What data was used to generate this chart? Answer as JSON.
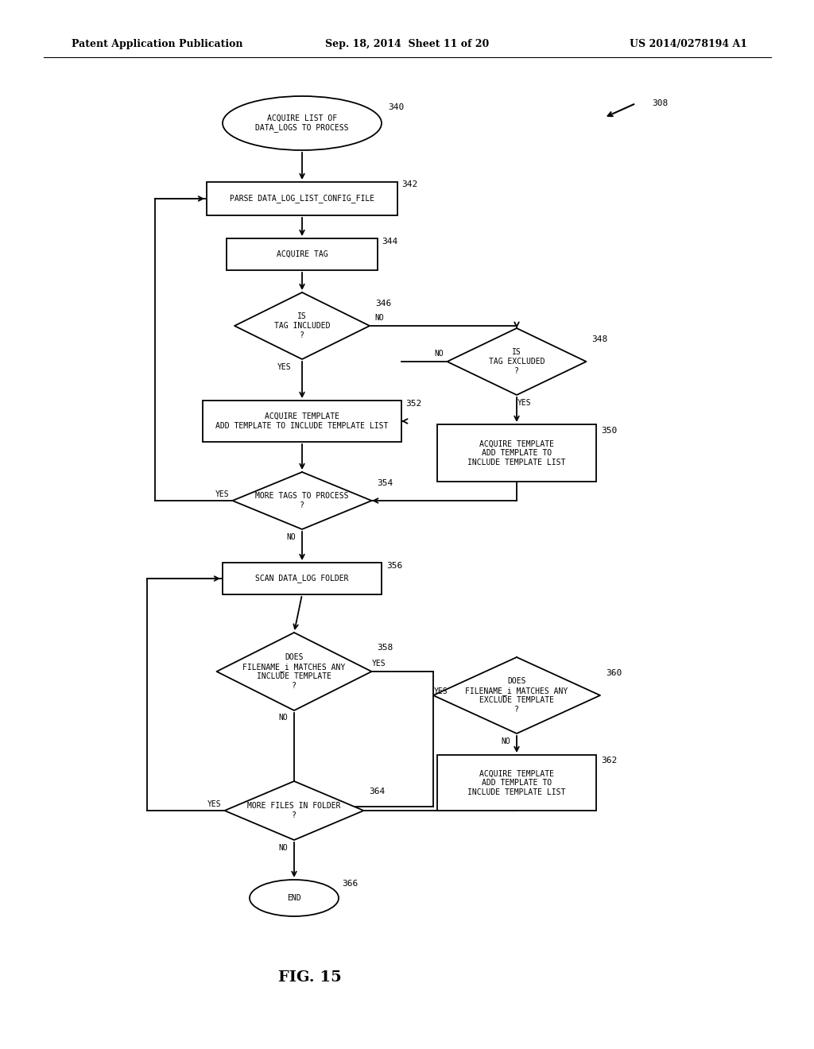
{
  "bg_color": "#ffffff",
  "header_left": "Patent Application Publication",
  "header_mid": "Sep. 18, 2014  Sheet 11 of 20",
  "header_right": "US 2014/0278194 A1",
  "fig_label": "FIG. 15",
  "font_size_node": 7.0,
  "font_size_header": 9.0,
  "font_size_ref": 8.0,
  "font_size_figlabel": 14,
  "font_size_label": 7.0,
  "lw": 1.3
}
